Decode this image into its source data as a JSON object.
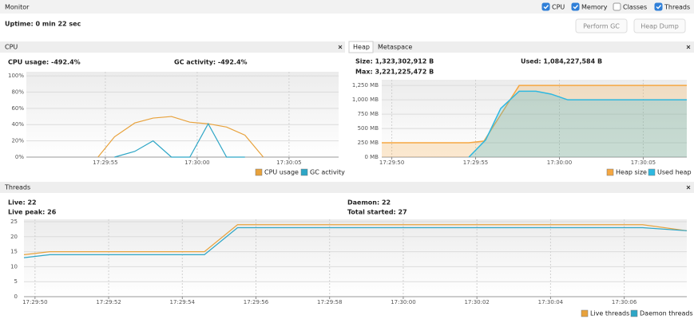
{
  "header": {
    "title": "Monitor",
    "checkboxes": [
      {
        "label": "CPU",
        "checked": true
      },
      {
        "label": "Memory",
        "checked": true
      },
      {
        "label": "Classes",
        "checked": false
      },
      {
        "label": "Threads",
        "checked": true
      }
    ],
    "uptime": "Uptime: 0 min 22 sec",
    "buttons": [
      "Perform GC",
      "Heap Dump"
    ]
  },
  "panels": [
    {
      "title": "CPU",
      "stats": [
        "CPU usage: -492.4%",
        "GC activity: -492.4%"
      ]
    },
    {
      "tabs": [
        "Heap",
        "Metaspace"
      ],
      "stats": [
        "Size: 1,323,302,912 B",
        "Used: 1,084,227,584 B",
        "Max: 3,221,225,472 B"
      ]
    },
    {
      "title": "Threads",
      "stats": [
        "Live: 22",
        "Live peak: 26",
        "Daemon: 22",
        "Total started: 27"
      ]
    }
  ],
  "chart_data": [
    {
      "type": "line",
      "xlim": [
        "17:29:50.7",
        "17:30:07.7"
      ],
      "xticks": [
        "17:29:55",
        "17:30:00",
        "17:30:05"
      ],
      "ylim": [
        0,
        105
      ],
      "yticks": [
        {
          "value": 0,
          "label": "0%"
        },
        {
          "value": 20,
          "label": "20%"
        },
        {
          "value": 40,
          "label": "40%"
        },
        {
          "value": 60,
          "label": "60%"
        },
        {
          "value": 80,
          "label": "80%"
        },
        {
          "value": 100,
          "label": "100%"
        }
      ],
      "grid": true,
      "series": [
        {
          "name": "CPU usage",
          "color": "#e8a23c",
          "x": [
            "17:29:54.6",
            "17:29:55.5",
            "17:29:56.6",
            "17:29:57.6",
            "17:29:58.6",
            "17:29:59.6",
            "17:30:00.6",
            "17:30:01.6",
            "17:30:02.6",
            "17:30:03.6"
          ],
          "values": [
            0,
            25,
            42,
            48,
            50,
            43,
            41,
            37,
            27,
            0
          ]
        },
        {
          "name": "GC activity",
          "color": "#2ea6c6",
          "x": [
            "17:29:55.5",
            "17:29:56.6",
            "17:29:57.6",
            "17:29:58.6",
            "17:29:59.6",
            "17:30:00.6",
            "17:30:01.6",
            "17:30:02.6"
          ],
          "values": [
            0,
            7,
            20,
            0,
            0,
            41,
            0,
            0
          ]
        }
      ]
    },
    {
      "type": "area",
      "xlim": [
        "17:29:49.4",
        "17:30:07.6"
      ],
      "xticks": [
        "17:29:50",
        "17:29:55",
        "17:30:00",
        "17:30:05"
      ],
      "ylim": [
        0,
        1350
      ],
      "yticks": [
        {
          "value": 0,
          "label": "0 MB"
        },
        {
          "value": 250,
          "label": "250 MB"
        },
        {
          "value": 500,
          "label": "500 MB"
        },
        {
          "value": 750,
          "label": "750 MB"
        },
        {
          "value": 1000,
          "label": "1,000 MB"
        },
        {
          "value": 1250,
          "label": "1,250 MB"
        }
      ],
      "grid": true,
      "series": [
        {
          "name": "Heap size",
          "color": "#f5a742",
          "x": [
            "17:29:49.4",
            "17:29:54.6",
            "17:29:55.5",
            "17:29:57.6",
            "17:30:07.6"
          ],
          "values": [
            250,
            250,
            280,
            1250,
            1250
          ]
        },
        {
          "name": "Used heap",
          "color": "#2eb8e0",
          "x": [
            "17:29:54.6",
            "17:29:55.6",
            "17:29:56.5",
            "17:29:57.6",
            "17:29:58.6",
            "17:29:59.5",
            "17:30:00.5",
            "17:30:07.6"
          ],
          "values": [
            0,
            300,
            850,
            1150,
            1150,
            1100,
            1000,
            1000
          ]
        }
      ]
    },
    {
      "type": "line",
      "xlim": [
        "17:29:49.7",
        "17:30:07.7"
      ],
      "xticks": [
        "17:29:50",
        "17:29:52",
        "17:29:54",
        "17:29:56",
        "17:29:58",
        "17:30:00",
        "17:30:02",
        "17:30:04",
        "17:30:06"
      ],
      "ylim": [
        0,
        25.8
      ],
      "yticks": [
        0,
        5,
        10,
        15,
        20,
        25
      ],
      "grid": true,
      "series": [
        {
          "name": "Live threads",
          "color": "#e8a23c",
          "x": [
            "17:29:49.7",
            "17:29:50.4",
            "17:29:54.6",
            "17:29:55.5",
            "17:30:06.5",
            "17:30:07.7"
          ],
          "values": [
            14,
            15,
            15,
            24,
            24,
            22
          ]
        },
        {
          "name": "Daemon threads",
          "color": "#2ea6c6",
          "x": [
            "17:29:49.7",
            "17:29:50.4",
            "17:29:54.6",
            "17:29:55.5",
            "17:30:06.5",
            "17:30:07.7"
          ],
          "values": [
            13,
            14,
            14,
            23,
            23,
            22
          ]
        }
      ]
    }
  ]
}
